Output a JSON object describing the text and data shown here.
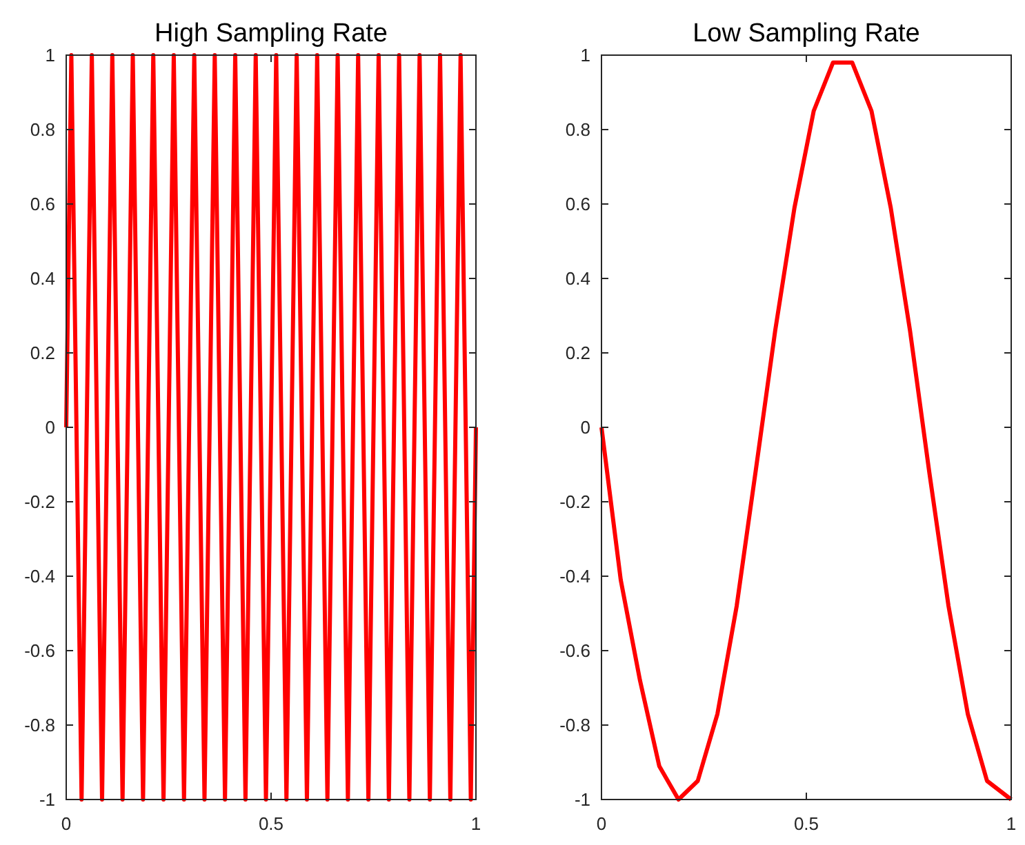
{
  "chart_data": [
    {
      "type": "line",
      "title": "High Sampling Rate",
      "x": [
        0,
        0.0125,
        0.0375,
        0.0625,
        0.0875,
        0.1125,
        0.1375,
        0.1625,
        0.1875,
        0.2125,
        0.2375,
        0.2625,
        0.2875,
        0.3125,
        0.3375,
        0.3625,
        0.3875,
        0.4125,
        0.4375,
        0.4625,
        0.4875,
        0.5125,
        0.5375,
        0.5625,
        0.5875,
        0.6125,
        0.6375,
        0.6625,
        0.6875,
        0.7125,
        0.7375,
        0.7625,
        0.7875,
        0.8125,
        0.8375,
        0.8625,
        0.8875,
        0.9125,
        0.9375,
        0.9625,
        0.9875,
        1
      ],
      "series": [
        {
          "color": "#ff0000",
          "values": [
            0,
            1,
            -1,
            1,
            -1,
            1,
            -1,
            1,
            -1,
            1,
            -1,
            1,
            -1,
            1,
            -1,
            1,
            -1,
            1,
            -1,
            1,
            -1,
            1,
            -1,
            1,
            -1,
            1,
            -1,
            1,
            -1,
            1,
            -1,
            1,
            -1,
            1,
            -1,
            1,
            -1,
            1,
            -1,
            1,
            -1,
            0
          ]
        }
      ],
      "xlim": [
        0,
        1
      ],
      "xticks": [
        0,
        0.5,
        1
      ],
      "ylim": [
        -1,
        1
      ],
      "yticks": [
        -1,
        -0.8,
        -0.6,
        -0.4,
        -0.2,
        0,
        0.2,
        0.4,
        0.6,
        0.8,
        1
      ],
      "grid": false,
      "marker": "none",
      "line_style": "solid"
    },
    {
      "type": "line",
      "title": "Low Sampling Rate",
      "x": [
        0,
        0.047,
        0.094,
        0.141,
        0.188,
        0.235,
        0.283,
        0.33,
        0.376,
        0.424,
        0.471,
        0.518,
        0.565,
        0.612,
        0.659,
        0.706,
        0.753,
        0.8,
        0.847,
        0.894,
        0.941,
        1
      ],
      "series": [
        {
          "color": "#ff0000",
          "values": [
            0,
            -0.41,
            -0.68,
            -0.91,
            -1,
            -0.95,
            -0.77,
            -0.48,
            -0.12,
            0.26,
            0.59,
            0.85,
            0.98,
            0.98,
            0.85,
            0.59,
            0.26,
            -0.12,
            -0.48,
            -0.77,
            -0.95,
            -1
          ]
        }
      ],
      "xlim": [
        0,
        1
      ],
      "xticks": [
        0,
        0.5,
        1
      ],
      "ylim": [
        -1,
        1
      ],
      "yticks": [
        -1,
        -0.8,
        -0.6,
        -0.4,
        -0.2,
        0,
        0.2,
        0.4,
        0.6,
        0.8,
        1
      ],
      "grid": false,
      "marker": "none",
      "line_style": "solid"
    }
  ]
}
